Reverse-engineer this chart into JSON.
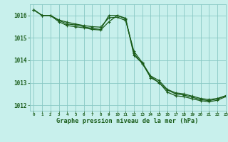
{
  "bg_color": "#c8f0ec",
  "grid_color": "#88c8c4",
  "line_color": "#1a5c1a",
  "marker_color": "#1a5c1a",
  "title": "Graphe pression niveau de la mer (hPa)",
  "title_color": "#1a5c1a",
  "xlim": [
    -0.5,
    23
  ],
  "ylim": [
    1011.75,
    1016.5
  ],
  "yticks": [
    1012,
    1013,
    1014,
    1015,
    1016
  ],
  "xticks": [
    0,
    1,
    2,
    3,
    4,
    5,
    6,
    7,
    8,
    9,
    10,
    11,
    12,
    13,
    14,
    15,
    16,
    17,
    18,
    19,
    20,
    21,
    22,
    23
  ],
  "series1": [
    1016.25,
    1016.0,
    1016.0,
    1015.8,
    1015.7,
    1015.62,
    1015.55,
    1015.5,
    1015.48,
    1015.9,
    1015.92,
    1015.78,
    1014.4,
    1013.9,
    1013.3,
    1013.1,
    1012.7,
    1012.55,
    1012.5,
    1012.4,
    1012.3,
    1012.25,
    1012.3,
    1012.42
  ],
  "series2": [
    1016.25,
    1016.0,
    1016.0,
    1015.72,
    1015.55,
    1015.5,
    1015.45,
    1015.38,
    1015.35,
    1015.72,
    1016.0,
    1015.88,
    1014.22,
    1013.88,
    1013.22,
    1013.02,
    1012.58,
    1012.42,
    1012.38,
    1012.28,
    1012.2,
    1012.15,
    1012.22,
    1012.38
  ],
  "series3": [
    1016.25,
    1016.0,
    1016.0,
    1015.78,
    1015.62,
    1015.58,
    1015.5,
    1015.42,
    1015.38,
    1016.0,
    1016.0,
    1015.85,
    1014.3,
    1013.85,
    1013.28,
    1013.0,
    1012.68,
    1012.5,
    1012.45,
    1012.35,
    1012.25,
    1012.2,
    1012.28,
    1012.42
  ]
}
